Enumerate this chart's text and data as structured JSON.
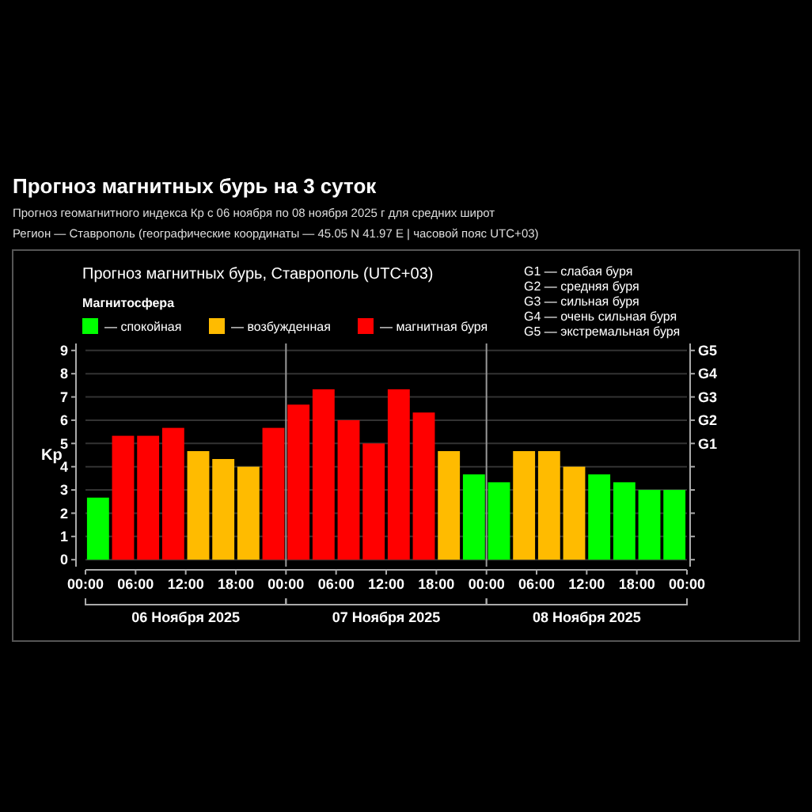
{
  "chart_data": {
    "type": "bar",
    "title": "Прогноз магнитных бурь на 3 суток",
    "subtitle": "Прогноз геомагнитного индекса Кр с 06 ноября по 08 ноября 2025 г для средних широт",
    "annotations": [
      "Регион — Ставрополь (географические координаты — 45.05 N 41.97 E | часовой пояс UTC+03)",
      "Прогноз магнитных бурь, Ставрополь (UTC+03)",
      "G1 — слабая буря",
      "G2 — средняя буря",
      "G3 — сильная буря",
      "G4 — очень сильная буря",
      "G5 — экстремальная буря",
      "06 Ноября 2025",
      "07 Ноября 2025",
      "08 Ноября 2025",
      "G1",
      "G2",
      "G3",
      "G4",
      "G5"
    ],
    "ylabel": "Kp",
    "legend_title": "Магнитосфера",
    "legend": "top left",
    "grid": "y",
    "x": [
      "2025-11-06T01:30",
      "2025-11-06T04:30",
      "2025-11-06T07:30",
      "2025-11-06T10:30",
      "2025-11-06T13:30",
      "2025-11-06T16:30",
      "2025-11-06T19:30",
      "2025-11-06T22:30",
      "2025-11-07T01:30",
      "2025-11-07T04:30",
      "2025-11-07T07:30",
      "2025-11-07T10:30",
      "2025-11-07T13:30",
      "2025-11-07T16:30",
      "2025-11-07T19:30",
      "2025-11-07T22:30",
      "2025-11-08T01:30",
      "2025-11-08T04:30",
      "2025-11-08T07:30",
      "2025-11-08T10:30",
      "2025-11-08T13:30",
      "2025-11-08T16:30",
      "2025-11-08T19:30",
      "2025-11-08T22:30"
    ],
    "series": [
      {
        "name": "— спокойная",
        "color": "#00ff00",
        "values": [
          2.67,
          null,
          null,
          null,
          null,
          null,
          null,
          null,
          null,
          null,
          null,
          null,
          null,
          null,
          null,
          3.67,
          3.33,
          null,
          null,
          null,
          3.67,
          3.33,
          3.0,
          3.0
        ]
      },
      {
        "name": "— возбужденная",
        "color": "#ffbb00",
        "values": [
          null,
          null,
          null,
          null,
          4.67,
          4.33,
          4.0,
          null,
          null,
          null,
          null,
          null,
          null,
          null,
          4.67,
          null,
          null,
          4.67,
          4.67,
          4.0,
          null,
          null,
          null,
          null
        ]
      },
      {
        "name": "— магнитная буря",
        "color": "#ff0000",
        "values": [
          null,
          5.33,
          5.33,
          5.67,
          null,
          null,
          null,
          5.67,
          6.67,
          7.33,
          6.0,
          5.0,
          7.33,
          6.33,
          null,
          null,
          null,
          null,
          null,
          null,
          null,
          null,
          null,
          null
        ]
      }
    ],
    "xlim": [
      "2025-11-06T00:00",
      "2025-11-09T00:00"
    ],
    "xticks": [
      {
        "value": "2025-11-06T00:00",
        "label": "00:00"
      },
      {
        "value": "2025-11-06T06:00",
        "label": "06:00"
      },
      {
        "value": "2025-11-06T12:00",
        "label": "12:00"
      },
      {
        "value": "2025-11-06T18:00",
        "label": "18:00"
      },
      {
        "value": "2025-11-07T00:00",
        "label": "00:00"
      },
      {
        "value": "2025-11-07T06:00",
        "label": "06:00"
      },
      {
        "value": "2025-11-07T12:00",
        "label": "12:00"
      },
      {
        "value": "2025-11-07T18:00",
        "label": "18:00"
      },
      {
        "value": "2025-11-08T00:00",
        "label": "00:00"
      },
      {
        "value": "2025-11-08T06:00",
        "label": "06:00"
      },
      {
        "value": "2025-11-08T12:00",
        "label": "12:00"
      },
      {
        "value": "2025-11-08T18:00",
        "label": "18:00"
      },
      {
        "value": "2025-11-09T00:00",
        "label": "00:00"
      }
    ],
    "ylim": [
      -0.3,
      9.3
    ],
    "yticks": [
      0,
      1,
      2,
      3,
      4,
      5,
      6,
      7,
      8,
      9
    ],
    "ref_lines": [
      {
        "axis": "x",
        "value": "2025-11-07T00:00",
        "color": "#999999"
      },
      {
        "axis": "x",
        "value": "2025-11-08T00:00",
        "color": "#999999"
      }
    ]
  }
}
